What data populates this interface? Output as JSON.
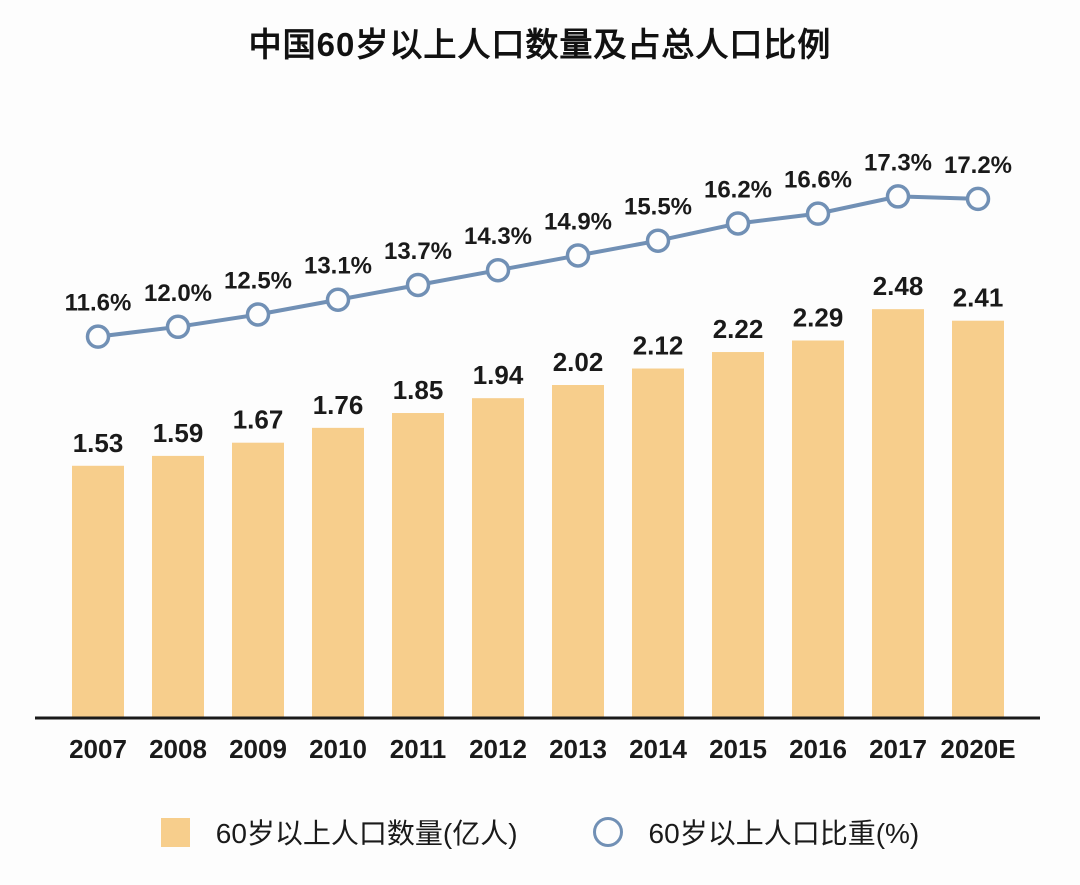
{
  "title": "中国60岁以上人口数量及占总人口比例",
  "colors": {
    "bar": "#f7ce8c",
    "line": "#7190b5",
    "marker_fill": "#fdfdfd",
    "axis": "#1a1a1a",
    "text": "#1a1a1a"
  },
  "legend": {
    "bar_label": "60岁以上人口数量(亿人)",
    "line_label": "60岁以上人口比重(%)"
  },
  "chart_data": {
    "type": "bar",
    "subtype": "combo-bar-line",
    "title": "中国60岁以上人口数量及占总人口比例",
    "categories": [
      "2007",
      "2008",
      "2009",
      "2010",
      "2011",
      "2012",
      "2013",
      "2014",
      "2015",
      "2016",
      "2017",
      "2020E"
    ],
    "series": [
      {
        "name": "60岁以上人口数量(亿人)",
        "type": "bar",
        "axis": "left",
        "values": [
          1.53,
          1.59,
          1.67,
          1.76,
          1.85,
          1.94,
          2.02,
          2.12,
          2.22,
          2.29,
          2.48,
          2.41
        ],
        "labels": [
          "1.53",
          "1.59",
          "1.67",
          "1.76",
          "1.85",
          "1.94",
          "2.02",
          "2.12",
          "2.22",
          "2.29",
          "2.48",
          "2.41"
        ]
      },
      {
        "name": "60岁以上人口比重(%)",
        "type": "line",
        "axis": "right",
        "values": [
          11.6,
          12.0,
          12.5,
          13.1,
          13.7,
          14.3,
          14.9,
          15.5,
          16.2,
          16.6,
          17.3,
          17.2
        ],
        "labels": [
          "11.6%",
          "12.0%",
          "12.5%",
          "13.1%",
          "13.7%",
          "14.3%",
          "14.9%",
          "15.5%",
          "16.2%",
          "16.6%",
          "17.3%",
          "17.2%"
        ]
      }
    ],
    "xlabel": "",
    "ylabel": "",
    "ylim": [
      0,
      3.67
    ],
    "y2lim": [
      10,
      20
    ],
    "grid": false,
    "data_labels": true,
    "legend_position": "bottom"
  }
}
